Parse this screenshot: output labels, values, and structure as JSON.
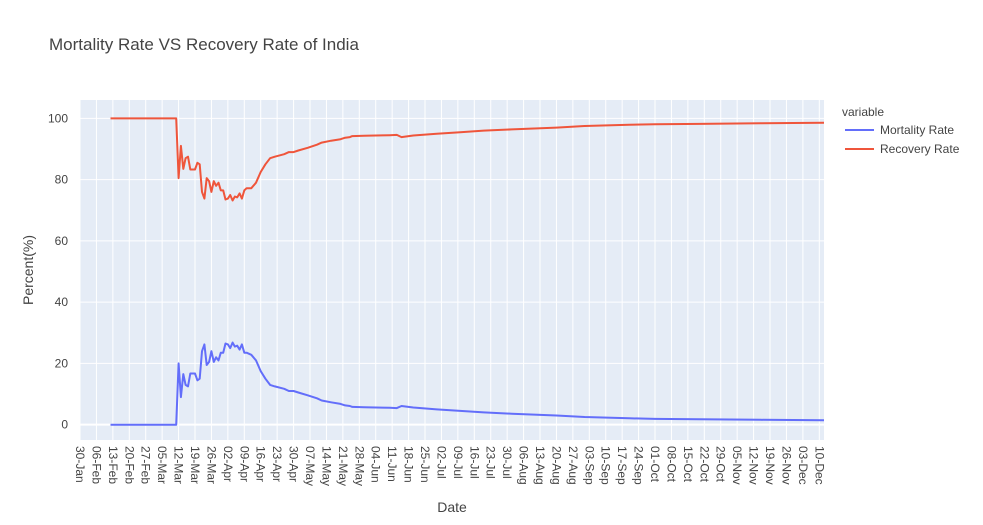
{
  "colors": {
    "plot_bg": "#E5ECF6",
    "grid": "#FFFFFF",
    "text": "#444444"
  },
  "chart_data": {
    "type": "line",
    "title": "Mortality Rate VS Recovery Rate of India",
    "xlabel": "Date",
    "ylabel": "Percent(%)",
    "xlim": [
      "2020-01-30",
      "2020-12-12"
    ],
    "ylim": [
      -5,
      106
    ],
    "yticks": [
      0,
      20,
      40,
      60,
      80,
      100
    ],
    "xtick_labels": [
      "30-Jan",
      "06-Feb",
      "13-Feb",
      "20-Feb",
      "27-Feb",
      "05-Mar",
      "12-Mar",
      "19-Mar",
      "26-Mar",
      "02-Apr",
      "09-Apr",
      "16-Apr",
      "23-Apr",
      "30-Apr",
      "07-May",
      "14-May",
      "21-May",
      "28-May",
      "04-Jun",
      "11-Jun",
      "18-Jun",
      "25-Jun",
      "02-Jul",
      "09-Jul",
      "16-Jul",
      "23-Jul",
      "30-Jul",
      "06-Aug",
      "13-Aug",
      "20-Aug",
      "27-Aug",
      "03-Sep",
      "10-Sep",
      "17-Sep",
      "24-Sep",
      "01-Oct",
      "08-Oct",
      "15-Oct",
      "22-Oct",
      "29-Oct",
      "05-Nov",
      "12-Nov",
      "19-Nov",
      "26-Nov",
      "03-Dec",
      "10-Dec"
    ],
    "grid": true,
    "legend": {
      "title": "variable",
      "position": "top-right"
    },
    "series": [
      {
        "name": "Mortality Rate",
        "color": "#636EFA",
        "points": [
          [
            "2020-02-12",
            0
          ],
          [
            "2020-03-11",
            0
          ],
          [
            "2020-03-12",
            20
          ],
          [
            "2020-03-13",
            9
          ],
          [
            "2020-03-14",
            16.5
          ],
          [
            "2020-03-15",
            13
          ],
          [
            "2020-03-16",
            12.5
          ],
          [
            "2020-03-17",
            16.7
          ],
          [
            "2020-03-19",
            16.7
          ],
          [
            "2020-03-20",
            14.5
          ],
          [
            "2020-03-21",
            15
          ],
          [
            "2020-03-22",
            24
          ],
          [
            "2020-03-23",
            26.2
          ],
          [
            "2020-03-24",
            19.5
          ],
          [
            "2020-03-25",
            20.5
          ],
          [
            "2020-03-26",
            24
          ],
          [
            "2020-03-27",
            20.5
          ],
          [
            "2020-03-28",
            22
          ],
          [
            "2020-03-29",
            21
          ],
          [
            "2020-03-30",
            23.5
          ],
          [
            "2020-03-31",
            23.5
          ],
          [
            "2020-04-01",
            26.5
          ],
          [
            "2020-04-02",
            26.2
          ],
          [
            "2020-04-03",
            25
          ],
          [
            "2020-04-04",
            26.8
          ],
          [
            "2020-04-05",
            25.5
          ],
          [
            "2020-04-06",
            25.8
          ],
          [
            "2020-04-07",
            24.5
          ],
          [
            "2020-04-08",
            26.2
          ],
          [
            "2020-04-09",
            23.5
          ],
          [
            "2020-04-10",
            23.5
          ],
          [
            "2020-04-12",
            22.8
          ],
          [
            "2020-04-14",
            21
          ],
          [
            "2020-04-16",
            17.5
          ],
          [
            "2020-04-18",
            15
          ],
          [
            "2020-04-20",
            13
          ],
          [
            "2020-04-22",
            12.5
          ],
          [
            "2020-04-26",
            11.7
          ],
          [
            "2020-04-28",
            11
          ],
          [
            "2020-04-30",
            11
          ],
          [
            "2020-05-02",
            10.5
          ],
          [
            "2020-05-06",
            9.6
          ],
          [
            "2020-05-10",
            8.6
          ],
          [
            "2020-05-12",
            7.9
          ],
          [
            "2020-05-16",
            7.3
          ],
          [
            "2020-05-20",
            6.8
          ],
          [
            "2020-05-22",
            6.3
          ],
          [
            "2020-05-24",
            6.1
          ],
          [
            "2020-05-25",
            5.8
          ],
          [
            "2020-05-30",
            5.7
          ],
          [
            "2020-06-04",
            5.6
          ],
          [
            "2020-06-10",
            5.5
          ],
          [
            "2020-06-13",
            5.4
          ],
          [
            "2020-06-15",
            6.1
          ],
          [
            "2020-06-20",
            5.6
          ],
          [
            "2020-06-30",
            5
          ],
          [
            "2020-07-10",
            4.5
          ],
          [
            "2020-07-20",
            4
          ],
          [
            "2020-08-01",
            3.6
          ],
          [
            "2020-08-20",
            3
          ],
          [
            "2020-09-01",
            2.5
          ],
          [
            "2020-09-20",
            2.1
          ],
          [
            "2020-10-01",
            1.9
          ],
          [
            "2020-10-20",
            1.8
          ],
          [
            "2020-11-15",
            1.6
          ],
          [
            "2020-12-12",
            1.45
          ]
        ]
      },
      {
        "name": "Recovery Rate",
        "color": "#EF553B",
        "points": [
          [
            "2020-02-12",
            100
          ],
          [
            "2020-03-11",
            100
          ],
          [
            "2020-03-12",
            80.5
          ],
          [
            "2020-03-13",
            91
          ],
          [
            "2020-03-14",
            83.5
          ],
          [
            "2020-03-15",
            87
          ],
          [
            "2020-03-16",
            87.5
          ],
          [
            "2020-03-17",
            83.3
          ],
          [
            "2020-03-19",
            83.3
          ],
          [
            "2020-03-20",
            85.5
          ],
          [
            "2020-03-21",
            85
          ],
          [
            "2020-03-22",
            76
          ],
          [
            "2020-03-23",
            73.8
          ],
          [
            "2020-03-24",
            80.5
          ],
          [
            "2020-03-25",
            79.5
          ],
          [
            "2020-03-26",
            76
          ],
          [
            "2020-03-27",
            79.5
          ],
          [
            "2020-03-28",
            78
          ],
          [
            "2020-03-29",
            79
          ],
          [
            "2020-03-30",
            76.5
          ],
          [
            "2020-03-31",
            76.5
          ],
          [
            "2020-04-01",
            73.5
          ],
          [
            "2020-04-02",
            73.8
          ],
          [
            "2020-04-03",
            75
          ],
          [
            "2020-04-04",
            73.2
          ],
          [
            "2020-04-05",
            74.5
          ],
          [
            "2020-04-06",
            74.2
          ],
          [
            "2020-04-07",
            75.5
          ],
          [
            "2020-04-08",
            73.8
          ],
          [
            "2020-04-09",
            76.5
          ],
          [
            "2020-04-10",
            77.2
          ],
          [
            "2020-04-12",
            77.2
          ],
          [
            "2020-04-14",
            79
          ],
          [
            "2020-04-16",
            82.5
          ],
          [
            "2020-04-18",
            85
          ],
          [
            "2020-04-20",
            87
          ],
          [
            "2020-04-22",
            87.5
          ],
          [
            "2020-04-26",
            88.3
          ],
          [
            "2020-04-28",
            89
          ],
          [
            "2020-04-30",
            89
          ],
          [
            "2020-05-02",
            89.5
          ],
          [
            "2020-05-06",
            90.4
          ],
          [
            "2020-05-10",
            91.4
          ],
          [
            "2020-05-12",
            92.1
          ],
          [
            "2020-05-16",
            92.7
          ],
          [
            "2020-05-20",
            93.2
          ],
          [
            "2020-05-22",
            93.7
          ],
          [
            "2020-05-24",
            93.9
          ],
          [
            "2020-05-25",
            94.2
          ],
          [
            "2020-05-30",
            94.3
          ],
          [
            "2020-06-04",
            94.4
          ],
          [
            "2020-06-10",
            94.5
          ],
          [
            "2020-06-13",
            94.6
          ],
          [
            "2020-06-15",
            93.9
          ],
          [
            "2020-06-20",
            94.4
          ],
          [
            "2020-06-30",
            95
          ],
          [
            "2020-07-10",
            95.5
          ],
          [
            "2020-07-20",
            96
          ],
          [
            "2020-08-01",
            96.4
          ],
          [
            "2020-08-20",
            97
          ],
          [
            "2020-09-01",
            97.5
          ],
          [
            "2020-09-20",
            97.9
          ],
          [
            "2020-10-01",
            98.1
          ],
          [
            "2020-10-20",
            98.2
          ],
          [
            "2020-11-15",
            98.4
          ],
          [
            "2020-12-12",
            98.55
          ]
        ]
      }
    ]
  }
}
